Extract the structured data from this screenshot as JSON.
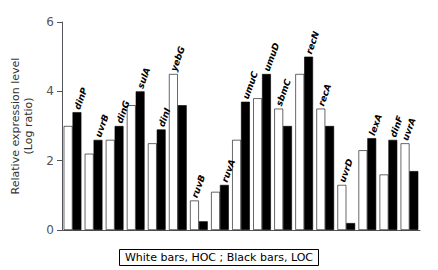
{
  "chart_data": {
    "type": "bar",
    "ylabel": "Relative expression level\n(Log ratio)",
    "annotations": [
      "White bars, HOC ; Black bars, LOC"
    ],
    "categories": [
      "dinP",
      "uvrB",
      "dinG",
      "sulA",
      "dinI",
      "yebG",
      "ruvB",
      "ruvA",
      "umuC",
      "umuD",
      "sbmC",
      "recN",
      "recA",
      "uvrD",
      "lexA",
      "dinF",
      "uvrA"
    ],
    "series": [
      {
        "color": "white",
        "values": [
          3.0,
          2.2,
          2.6,
          3.6,
          2.5,
          4.5,
          0.85,
          1.1,
          2.6,
          3.8,
          3.5,
          4.5,
          3.5,
          1.3,
          2.3,
          1.6,
          2.5
        ]
      },
      {
        "color": "black",
        "values": [
          3.4,
          2.6,
          3.0,
          4.0,
          2.9,
          3.6,
          0.25,
          1.3,
          3.7,
          4.5,
          3.0,
          5.0,
          3.0,
          0.2,
          2.65,
          2.6,
          1.7
        ]
      }
    ],
    "ylim": [
      0,
      6
    ],
    "yticks": [
      0,
      2,
      4,
      6
    ],
    "grid": false,
    "tick_labels": "y"
  }
}
